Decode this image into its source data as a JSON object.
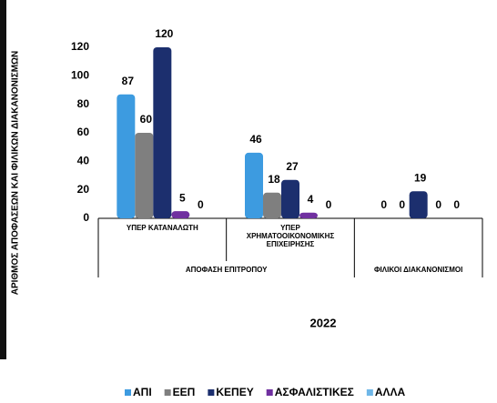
{
  "chart_data": {
    "type": "bar",
    "y_label": "ΑΡΙΘΜΟΣ ΑΠΟΦΑΣΕΩΝ ΚΑΙ ΦΙΛΙΚΩΝ ΔΙΑΚΑΝΟΝΙΣΜΩΝ",
    "x_label": "2022",
    "categories": [
      "ΥΠΕΡ ΚΑΤΑΝΑΛΩΤΗ",
      "ΥΠΕΡ ΧΡΗΜΑΤΟΟΙΚΟΝΟΜΙΚΗΣ ΕΠΙΧΕΙΡΗΣΗΣ",
      null
    ],
    "category_groups": [
      "ΑΠΟΦΑΣΗ ΕΠΙΤΡΟΠΟΥ",
      "ΑΠΟΦΑΣΗ ΕΠΙΤΡΟΠΟΥ",
      "ΦΙΛΙΚΟΙ ΔΙΑΚΑΝΟΝΙΣΜΟΙ"
    ],
    "series": [
      {
        "name": "ΑΠΙ",
        "color": "#3d9be0",
        "values": [
          87,
          46,
          0
        ]
      },
      {
        "name": "ΕΕΠ",
        "color": "#7f7f7f",
        "values": [
          60,
          18,
          0
        ]
      },
      {
        "name": "ΚΕΠΕΥ",
        "color": "#1c2f6e",
        "values": [
          120,
          27,
          19
        ]
      },
      {
        "name": "ΑΣΦΑΛΙΣΤΙΚΕΣ",
        "color": "#7030a0",
        "values": [
          5,
          4,
          0
        ]
      },
      {
        "name": "ΑΛΛΑ",
        "color": "#6fb7e8",
        "values": [
          0,
          0,
          0
        ]
      }
    ],
    "ylim": [
      0,
      120
    ],
    "yticks": [
      0,
      20,
      40,
      60,
      80,
      100,
      120
    ],
    "grid": false,
    "legend": "bottom"
  }
}
